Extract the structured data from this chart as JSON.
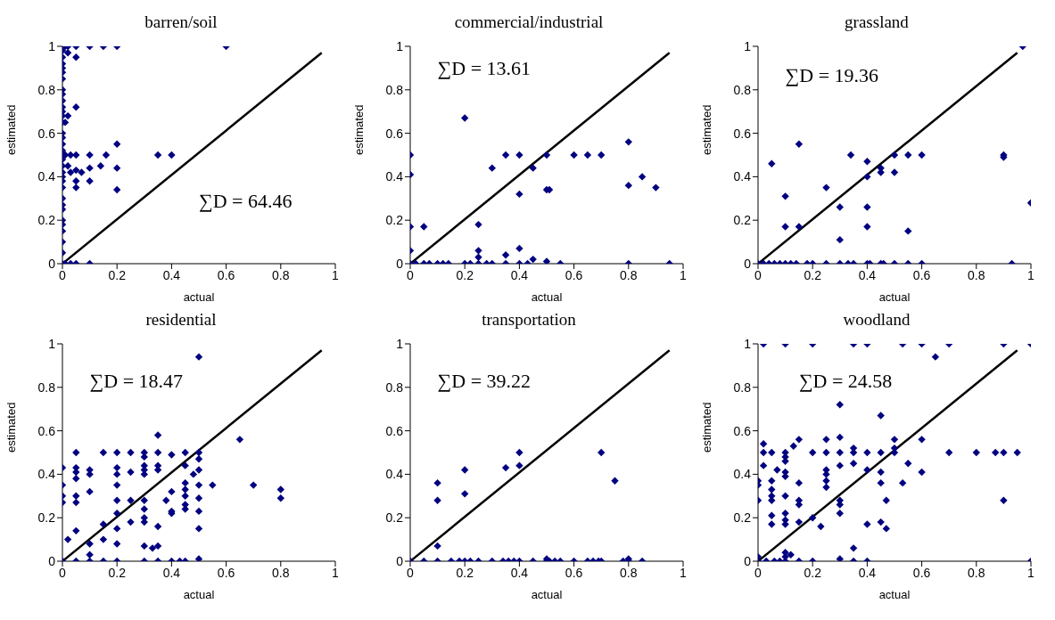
{
  "chart_data": [
    {
      "type": "scatter",
      "title": "barren/soil",
      "xlabel": "actual",
      "ylabel": "estimated",
      "xlim": [
        0,
        1
      ],
      "ylim": [
        0,
        1
      ],
      "xticks": [
        0,
        0.2,
        0.4,
        0.6,
        0.8,
        1
      ],
      "yticks": [
        0,
        0.2,
        0.4,
        0.6,
        0.8,
        1
      ],
      "annotations": [
        "∑D = 64.46"
      ],
      "series": [
        {
          "marker": "diamond",
          "color": "#000080",
          "x": [
            0,
            0,
            0,
            0,
            0,
            0,
            0,
            0,
            0,
            0,
            0,
            0,
            0,
            0,
            0,
            0,
            0,
            0,
            0,
            0,
            0,
            0,
            0,
            0,
            0,
            0,
            0,
            0,
            0,
            0,
            0,
            0,
            0,
            0.01,
            0.02,
            0.05,
            0.1,
            0.15,
            0.2,
            0.6,
            0.02,
            0.05,
            0.05,
            0.02,
            0.01,
            0.2,
            0.01,
            0.03,
            0.05,
            0.1,
            0.16,
            0.35,
            0.4,
            0.14,
            0.2,
            0.1,
            0.05,
            0.07,
            0.03,
            0.02,
            0.05,
            0.1,
            0.2,
            0.05,
            0.01,
            0.03,
            0.05,
            0.1
          ],
          "values": [
            0,
            0.05,
            0.1,
            0.15,
            0.18,
            0.2,
            0.25,
            0.27,
            0.3,
            0.35,
            0.38,
            0.4,
            0.42,
            0.45,
            0.48,
            0.5,
            0.52,
            0.55,
            0.58,
            0.6,
            0.65,
            0.68,
            0.7,
            0.72,
            0.75,
            0.78,
            0.8,
            0.85,
            0.88,
            0.9,
            0.92,
            0.95,
            0.98,
            1,
            1,
            1,
            1,
            1,
            1,
            1,
            0.97,
            0.95,
            0.72,
            0.68,
            0.65,
            0.55,
            0.5,
            0.5,
            0.5,
            0.5,
            0.5,
            0.5,
            0.5,
            0.45,
            0.44,
            0.44,
            0.43,
            0.42,
            0.42,
            0.45,
            0.38,
            0.38,
            0.34,
            0.35,
            0,
            0,
            0,
            0
          ]
        },
        {
          "type": "line",
          "marker": "none",
          "color": "#000000",
          "x": [
            0,
            0.95
          ],
          "values": [
            0,
            0.97
          ]
        }
      ]
    },
    {
      "type": "scatter",
      "title": "commercial/industrial",
      "xlabel": "actual",
      "ylabel": "estimated",
      "xlim": [
        0,
        1
      ],
      "ylim": [
        0,
        1
      ],
      "xticks": [
        0,
        0.2,
        0.4,
        0.6,
        0.8,
        1
      ],
      "yticks": [
        0,
        0.2,
        0.4,
        0.6,
        0.8,
        1
      ],
      "annotations": [
        "∑D = 13.61"
      ],
      "series": [
        {
          "marker": "diamond",
          "color": "#000080",
          "x": [
            0,
            0,
            0,
            0,
            0,
            0.02,
            0.05,
            0.05,
            0.07,
            0.1,
            0.12,
            0.14,
            0.2,
            0.2,
            0.22,
            0.25,
            0.25,
            0.25,
            0.25,
            0.28,
            0.3,
            0.3,
            0.35,
            0.35,
            0.35,
            0.4,
            0.4,
            0.4,
            0.4,
            0.43,
            0.45,
            0.45,
            0.5,
            0.5,
            0.5,
            0.51,
            0.55,
            0.6,
            0.65,
            0.7,
            0.8,
            0.8,
            0.8,
            0.85,
            0.9,
            0.95
          ],
          "values": [
            0.5,
            0.41,
            0.17,
            0.06,
            0,
            0,
            0.17,
            0,
            0,
            0,
            0,
            0,
            0.67,
            0,
            0,
            0.18,
            0.06,
            0.03,
            0,
            0,
            0.44,
            0,
            0.5,
            0.04,
            0,
            0.5,
            0.32,
            0.07,
            0,
            0,
            0.44,
            0.02,
            0.5,
            0.34,
            0.01,
            0.34,
            0,
            0.5,
            0.5,
            0.5,
            0.56,
            0.36,
            0,
            0.4,
            0.35,
            0
          ]
        },
        {
          "type": "line",
          "marker": "none",
          "color": "#000000",
          "x": [
            0,
            0.95
          ],
          "values": [
            0,
            0.97
          ]
        }
      ]
    },
    {
      "type": "scatter",
      "title": "grassland",
      "xlabel": "actual",
      "ylabel": "estimated",
      "xlim": [
        0,
        1
      ],
      "ylim": [
        0,
        1
      ],
      "xticks": [
        0,
        0.2,
        0.4,
        0.6,
        0.8,
        1
      ],
      "yticks": [
        0,
        0.2,
        0.4,
        0.6,
        0.8,
        1
      ],
      "annotations": [
        "∑D = 19.36"
      ],
      "series": [
        {
          "marker": "diamond",
          "color": "#000080",
          "x": [
            0.97,
            0.05,
            0.15,
            0.1,
            0.1,
            0.15,
            0.25,
            0.3,
            0.3,
            0.34,
            0.4,
            0.4,
            0.4,
            0.4,
            0.45,
            0.45,
            0.5,
            0.5,
            0.55,
            0.55,
            0.6,
            0.9,
            0.9,
            1,
            0.93,
            0,
            0.02,
            0.04,
            0.06,
            0.08,
            0.1,
            0.12,
            0.14,
            0.18,
            0.2,
            0.25,
            0.3,
            0.33,
            0.35,
            0.4,
            0.41,
            0.45,
            0.46,
            0.5,
            0.55,
            0.6
          ],
          "values": [
            1,
            0.46,
            0.55,
            0.31,
            0.17,
            0.17,
            0.35,
            0.26,
            0.11,
            0.5,
            0.47,
            0.4,
            0.26,
            0.17,
            0.44,
            0.42,
            0.5,
            0.42,
            0.5,
            0.15,
            0.5,
            0.5,
            0.49,
            0.28,
            0,
            0,
            0,
            0,
            0,
            0,
            0,
            0,
            0,
            0,
            0,
            0,
            0,
            0,
            0,
            0,
            0,
            0,
            0,
            0,
            0,
            0
          ]
        },
        {
          "type": "line",
          "marker": "none",
          "color": "#000000",
          "x": [
            0,
            0.95
          ],
          "values": [
            0,
            0.97
          ]
        }
      ]
    },
    {
      "type": "scatter",
      "title": "residential",
      "xlabel": "actual",
      "ylabel": "estimated",
      "xlim": [
        0,
        1
      ],
      "ylim": [
        0,
        1
      ],
      "xticks": [
        0,
        0.2,
        0.4,
        0.6,
        0.8,
        1
      ],
      "yticks": [
        0,
        0.2,
        0.4,
        0.6,
        0.8,
        1
      ],
      "annotations": [
        "∑D = 18.47"
      ],
      "series": [
        {
          "marker": "diamond",
          "color": "#000080",
          "x": [
            0,
            0,
            0,
            0,
            0,
            0.02,
            0.05,
            0.05,
            0.05,
            0.05,
            0.05,
            0.05,
            0.05,
            0.05,
            0.1,
            0.1,
            0.1,
            0.1,
            0.1,
            0.1,
            0.15,
            0.15,
            0.15,
            0.15,
            0.2,
            0.2,
            0.2,
            0.2,
            0.2,
            0.2,
            0.2,
            0.2,
            0.2,
            0.25,
            0.25,
            0.25,
            0.25,
            0.3,
            0.3,
            0.3,
            0.3,
            0.3,
            0.3,
            0.3,
            0.3,
            0.3,
            0.3,
            0.3,
            0.33,
            0.35,
            0.35,
            0.35,
            0.35,
            0.35,
            0.35,
            0.35,
            0.38,
            0.4,
            0.4,
            0.4,
            0.4,
            0.4,
            0.43,
            0.45,
            0.45,
            0.45,
            0.45,
            0.45,
            0.45,
            0.45,
            0.45,
            0.48,
            0.5,
            0.5,
            0.5,
            0.5,
            0.5,
            0.5,
            0.5,
            0.5,
            0.5,
            0.55,
            0.65,
            0.7,
            0.8,
            0.8
          ],
          "values": [
            0.43,
            0.35,
            0.3,
            0.27,
            0,
            0.1,
            0.5,
            0.43,
            0.41,
            0.38,
            0.3,
            0.27,
            0.14,
            0,
            0.42,
            0.4,
            0.32,
            0.08,
            0.03,
            0,
            0.5,
            0.17,
            0.1,
            0,
            0.5,
            0.43,
            0.4,
            0.35,
            0.28,
            0.22,
            0.15,
            0.08,
            0,
            0.5,
            0.41,
            0.28,
            0.18,
            0.5,
            0.48,
            0.44,
            0.42,
            0.4,
            0.28,
            0.24,
            0.2,
            0.18,
            0.07,
            0,
            0.06,
            0.58,
            0.5,
            0.44,
            0.42,
            0.16,
            0.07,
            0,
            0.28,
            0.49,
            0.32,
            0.23,
            0.22,
            0,
            0,
            0.5,
            0.44,
            0.36,
            0.33,
            0.3,
            0.26,
            0.24,
            0,
            0.4,
            0.94,
            0.5,
            0.47,
            0.42,
            0.35,
            0.29,
            0.23,
            0.15,
            0.01,
            0.35,
            0.56,
            0.35,
            0.33,
            0.29
          ]
        },
        {
          "type": "line",
          "marker": "none",
          "color": "#000000",
          "x": [
            0,
            0.95
          ],
          "values": [
            0,
            0.97
          ]
        }
      ]
    },
    {
      "type": "scatter",
      "title": "transportation",
      "xlabel": "actual",
      "xlim": [
        0,
        1
      ],
      "ylim": [
        0,
        1
      ],
      "xticks": [
        0,
        0.2,
        0.4,
        0.6,
        0.8,
        1
      ],
      "yticks": [
        0,
        0.2,
        0.4,
        0.6,
        0.8,
        1
      ],
      "annotations": [
        "∑D = 39.22"
      ],
      "series": [
        {
          "marker": "diamond",
          "color": "#000080",
          "x": [
            0.1,
            0.1,
            0.1,
            0.2,
            0.2,
            0.35,
            0.4,
            0.4,
            0.7,
            0.75,
            0,
            0.05,
            0.1,
            0.15,
            0.18,
            0.2,
            0.22,
            0.25,
            0.3,
            0.34,
            0.36,
            0.38,
            0.4,
            0.45,
            0.5,
            0.51,
            0.53,
            0.55,
            0.6,
            0.65,
            0.67,
            0.69,
            0.7,
            0.78,
            0.8,
            0.85,
            0.5,
            0.8
          ],
          "values": [
            0.36,
            0.28,
            0.07,
            0.42,
            0.31,
            0.43,
            0.5,
            0.44,
            0.5,
            0.37,
            0,
            0,
            0,
            0,
            0,
            0,
            0,
            0,
            0,
            0,
            0,
            0,
            0,
            0,
            0,
            0,
            0,
            0,
            0,
            0,
            0,
            0,
            0,
            0,
            0,
            0,
            0.01,
            0.01
          ]
        },
        {
          "type": "line",
          "marker": "none",
          "color": "#000000",
          "x": [
            0,
            0.95
          ],
          "values": [
            0,
            0.97
          ]
        }
      ]
    },
    {
      "type": "scatter",
      "title": "woodland",
      "xlabel": "actual",
      "ylabel": "estimated",
      "xlim": [
        0,
        1
      ],
      "ylim": [
        0,
        1
      ],
      "xticks": [
        0,
        0.2,
        0.4,
        0.6,
        0.8,
        1
      ],
      "yticks": [
        0,
        0.2,
        0.4,
        0.6,
        0.8,
        1
      ],
      "annotations": [
        "∑D = 24.58"
      ],
      "series": [
        {
          "marker": "diamond",
          "color": "#000080",
          "x": [
            0.02,
            0.1,
            0.2,
            0.35,
            0.4,
            0.53,
            0.6,
            0.7,
            0.9,
            1,
            0.65,
            0.3,
            0.45,
            0.02,
            0.02,
            0.05,
            0.1,
            0.13,
            0.15,
            0.2,
            0.25,
            0.25,
            0.3,
            0.3,
            0.35,
            0.35,
            0.4,
            0.45,
            0.5,
            0.5,
            0.6,
            0.7,
            0.8,
            0.87,
            0.9,
            0.95,
            0,
            0,
            0,
            0,
            0,
            0.02,
            0.05,
            0.05,
            0.05,
            0.05,
            0.05,
            0.05,
            0.07,
            0.1,
            0.1,
            0.1,
            0.1,
            0.1,
            0.1,
            0.1,
            0.1,
            0.1,
            0.1,
            0.1,
            0.12,
            0.15,
            0.15,
            0.15,
            0.15,
            0.15,
            0.2,
            0.2,
            0.23,
            0.25,
            0.25,
            0.25,
            0.25,
            0.3,
            0.3,
            0.3,
            0.3,
            0.3,
            0.35,
            0.35,
            0.35,
            0.4,
            0.4,
            0.4,
            0.45,
            0.45,
            0.45,
            0.47,
            0.47,
            0.53,
            0.55,
            0.6,
            0.9,
            1,
            0.5,
            0.03,
            0.06,
            0.08
          ],
          "values": [
            1,
            1,
            1,
            1,
            1,
            1,
            1,
            1,
            1,
            1,
            0.94,
            0.72,
            0.67,
            0.54,
            0.5,
            0.5,
            0.5,
            0.53,
            0.56,
            0.5,
            0.56,
            0.5,
            0.57,
            0.5,
            0.52,
            0.5,
            0.5,
            0.5,
            0.56,
            0.5,
            0.56,
            0.5,
            0.5,
            0.5,
            0.5,
            0.5,
            0.37,
            0.35,
            0.28,
            0.02,
            0,
            0.44,
            0.37,
            0.33,
            0.3,
            0.28,
            0.21,
            0.17,
            0.42,
            0.48,
            0.46,
            0.41,
            0.39,
            0.3,
            0.22,
            0.19,
            0.17,
            0.04,
            0.02,
            0,
            0.03,
            0.36,
            0.28,
            0.26,
            0.18,
            0,
            0.2,
            0,
            0.16,
            0.42,
            0.4,
            0.37,
            0.34,
            0.44,
            0.28,
            0.26,
            0.22,
            0.01,
            0.45,
            0.06,
            0,
            0.42,
            0.17,
            0,
            0.41,
            0.36,
            0.18,
            0.28,
            0.15,
            0.36,
            0.45,
            0.41,
            0.28,
            0,
            0.52,
            0,
            0,
            0
          ]
        },
        {
          "type": "line",
          "marker": "none",
          "color": "#000000",
          "x": [
            0,
            0.95
          ],
          "values": [
            0,
            0.97
          ]
        }
      ]
    }
  ]
}
